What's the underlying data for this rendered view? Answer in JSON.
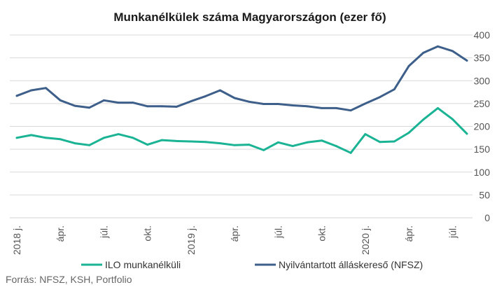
{
  "chart_data": {
    "type": "line",
    "title": "Munkanélkülek száma Magyarországon (ezer fő)",
    "source": "Forrás: NFSZ, KSH, Portfolio",
    "ylim": [
      0,
      400
    ],
    "yticks": [
      0,
      50,
      100,
      150,
      200,
      250,
      300,
      350,
      400
    ],
    "y_axis_side": "right",
    "grid": true,
    "legend_position": "bottom",
    "x_tick_labels": [
      "2018 j.",
      "ápr.",
      "júl.",
      "okt.",
      "2019 j.",
      "ápr.",
      "júl.",
      "okt.",
      "2020 j.",
      "ápr.",
      "júl."
    ],
    "x_tick_indices": [
      0,
      3,
      6,
      9,
      12,
      15,
      18,
      21,
      24,
      27,
      30
    ],
    "n_points": 32,
    "series": [
      {
        "name": "ILO munkanélküli",
        "color": "#1ab394",
        "values": [
          175,
          181,
          175,
          172,
          163,
          159,
          175,
          183,
          175,
          160,
          170,
          168,
          167,
          166,
          163,
          159,
          160,
          148,
          165,
          157,
          165,
          169,
          157,
          142,
          183,
          166,
          167,
          186,
          215,
          240,
          216,
          184
        ]
      },
      {
        "name": "Nyilvántartott álláskereső (NFSZ)",
        "color": "#3d5f8a",
        "values": [
          267,
          279,
          284,
          257,
          245,
          241,
          257,
          252,
          252,
          244,
          244,
          243,
          255,
          266,
          279,
          262,
          254,
          249,
          249,
          246,
          244,
          240,
          240,
          235,
          250,
          264,
          281,
          332,
          361,
          375,
          365,
          344
        ]
      }
    ]
  }
}
